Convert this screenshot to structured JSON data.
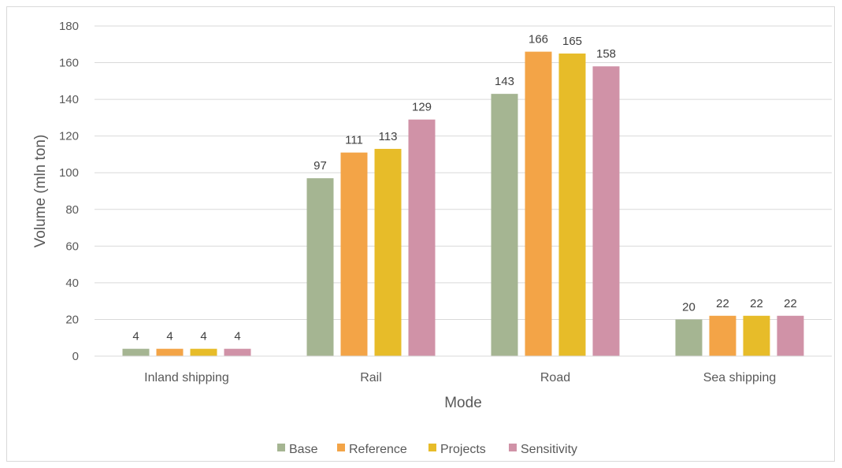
{
  "chart_data": {
    "type": "bar",
    "title": "",
    "xlabel": "Mode",
    "ylabel": "Volume (mln ton)",
    "ylim": [
      0,
      180
    ],
    "ytick_step": 20,
    "grid": true,
    "legend_position": "bottom",
    "categories": [
      "Inland shipping",
      "Rail",
      "Road",
      "Sea shipping"
    ],
    "series": [
      {
        "name": "Base",
        "color": "#a5b592",
        "values": [
          4,
          97,
          143,
          20
        ]
      },
      {
        "name": "Reference",
        "color": "#f3a447",
        "values": [
          4,
          111,
          166,
          22
        ]
      },
      {
        "name": "Projects",
        "color": "#e7bc29",
        "values": [
          4,
          113,
          165,
          22
        ]
      },
      {
        "name": "Sensitivity",
        "color": "#d092a7",
        "values": [
          4,
          129,
          158,
          22
        ]
      }
    ]
  }
}
